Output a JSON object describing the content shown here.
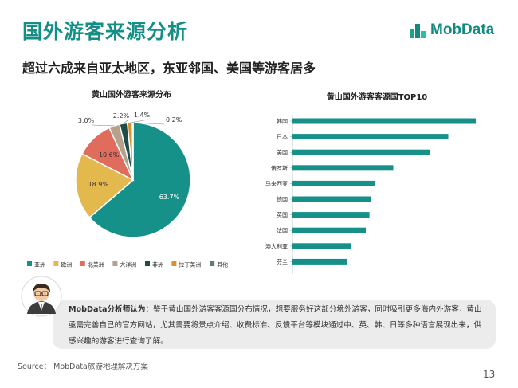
{
  "header": {
    "title": "国外游客来源分析",
    "subtitle": "超过六成来自亚太地区，东亚邻国、美国等游客居多",
    "brand": "MobData"
  },
  "chart_data": [
    {
      "type": "pie",
      "title": "黄山国外游客来源分布",
      "categories": [
        "亚洲",
        "欧洲",
        "北美洲",
        "大洋洲",
        "非洲",
        "拉丁美洲",
        "其他"
      ],
      "values": [
        63.7,
        18.9,
        10.6,
        3.0,
        2.2,
        1.4,
        0.2
      ],
      "labels": [
        "63.7%",
        "18.9%",
        "10.6%",
        "3.0%",
        "2.2%",
        "1.4%",
        "0.2%"
      ],
      "colors": [
        "#16918a",
        "#e3b94d",
        "#e06c5e",
        "#b7a18a",
        "#1f4e4a",
        "#d9922e",
        "#5a7f7b"
      ],
      "legend": "bottom"
    },
    {
      "type": "bar",
      "orientation": "horizontal",
      "title": "黄山国外游客客源国TOP10",
      "categories": [
        "韩国",
        "日本",
        "美国",
        "俄罗斯",
        "马来西亚",
        "德国",
        "英国",
        "法国",
        "澳大利亚",
        "芬兰"
      ],
      "values": [
        100,
        85,
        75,
        55,
        45,
        43,
        42,
        40,
        32,
        30
      ],
      "color": "#16918a"
    }
  ],
  "analyst": {
    "name": "MobData分析师认为",
    "text": "：鉴于黄山国外游客客源国分布情况，想要服务好这部分境外游客，同时吸引更多海内外游客，黄山亟需完善自己的官方网站，尤其需要将景点介绍、收费标准、反馈平台等模块通过中、英、韩、日等多种语言展现出来，供感兴趣的游客进行查询了解。"
  },
  "footer": {
    "source": "Source：  MobData旅游地理解决方案",
    "page": "13"
  }
}
